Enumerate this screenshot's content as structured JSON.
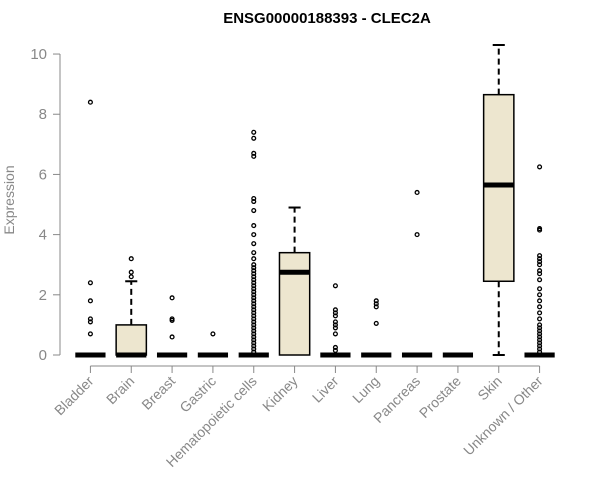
{
  "chart_data": {
    "type": "boxplot",
    "title": "ENSG00000188393 - CLEC2A",
    "xlabel": "",
    "ylabel": "Expression",
    "ylim": [
      0,
      10.4
    ],
    "yticks": [
      0,
      2,
      4,
      6,
      8,
      10
    ],
    "box_fill": "#ede6cf",
    "categories": [
      "Bladder",
      "Brain",
      "Breast",
      "Gastric",
      "Hematopoietic cells",
      "Kidney",
      "Liver",
      "Lung",
      "Pancreas",
      "Prostate",
      "Skin",
      "Unknown / Other"
    ],
    "boxes": [
      {
        "q1": 0,
        "median": 0,
        "q3": 0,
        "whisker_low": 0,
        "whisker_high": 0,
        "outliers": [
          8.4,
          2.4,
          1.8,
          1.2,
          1.1,
          0.7
        ]
      },
      {
        "q1": 0,
        "median": 0,
        "q3": 1.0,
        "whisker_low": 0,
        "whisker_high": 2.45,
        "outliers": [
          3.2,
          2.75,
          2.6
        ]
      },
      {
        "q1": 0,
        "median": 0,
        "q3": 0,
        "whisker_low": 0,
        "whisker_high": 0,
        "outliers": [
          1.9,
          1.2,
          1.15,
          0.6
        ]
      },
      {
        "q1": 0,
        "median": 0,
        "q3": 0,
        "whisker_low": 0,
        "whisker_high": 0,
        "outliers": [
          0.7
        ]
      },
      {
        "q1": 0,
        "median": 0,
        "q3": 0,
        "whisker_low": 0,
        "whisker_high": 0,
        "outliers": [
          7.4,
          7.2,
          6.7,
          6.6,
          5.2,
          5.1,
          4.8,
          4.3,
          4.0,
          3.7,
          3.4,
          3.2,
          3.0,
          2.9,
          2.8,
          2.7,
          2.6,
          2.5,
          2.4,
          2.3,
          2.2,
          2.1,
          2.0,
          1.9,
          1.8,
          1.7,
          1.6,
          1.5,
          1.4,
          1.3,
          1.2,
          1.1,
          1.0,
          0.9,
          0.8,
          0.7,
          0.6,
          0.5,
          0.4,
          0.3,
          0.2,
          0.1
        ]
      },
      {
        "q1": 0,
        "median": 2.75,
        "q3": 3.4,
        "whisker_low": 0,
        "whisker_high": 4.9,
        "outliers": []
      },
      {
        "q1": 0,
        "median": 0,
        "q3": 0,
        "whisker_low": 0,
        "whisker_high": 0,
        "outliers": [
          2.3,
          1.5,
          1.4,
          1.3,
          1.1,
          1.0,
          0.9,
          0.7,
          0.25,
          0.15
        ]
      },
      {
        "q1": 0,
        "median": 0,
        "q3": 0,
        "whisker_low": 0,
        "whisker_high": 0,
        "outliers": [
          1.8,
          1.7,
          1.6,
          1.05
        ]
      },
      {
        "q1": 0,
        "median": 0,
        "q3": 0,
        "whisker_low": 0,
        "whisker_high": 0,
        "outliers": [
          5.4,
          4.0
        ]
      },
      {
        "q1": 0,
        "median": 0,
        "q3": 0,
        "whisker_low": 0,
        "whisker_high": 0,
        "outliers": []
      },
      {
        "q1": 2.45,
        "median": 5.65,
        "q3": 8.65,
        "whisker_low": 0,
        "whisker_high": 10.3,
        "outliers": []
      },
      {
        "q1": 0,
        "median": 0,
        "q3": 0,
        "whisker_low": 0,
        "whisker_high": 0,
        "outliers": [
          6.25,
          4.2,
          4.15,
          3.3,
          3.2,
          3.1,
          3.0,
          2.8,
          2.7,
          2.5,
          2.2,
          2.0,
          1.8,
          1.6,
          1.4,
          1.2,
          1.0,
          0.9,
          0.8,
          0.7,
          0.6,
          0.5,
          0.4,
          0.3,
          0.2,
          0.1
        ]
      }
    ]
  }
}
